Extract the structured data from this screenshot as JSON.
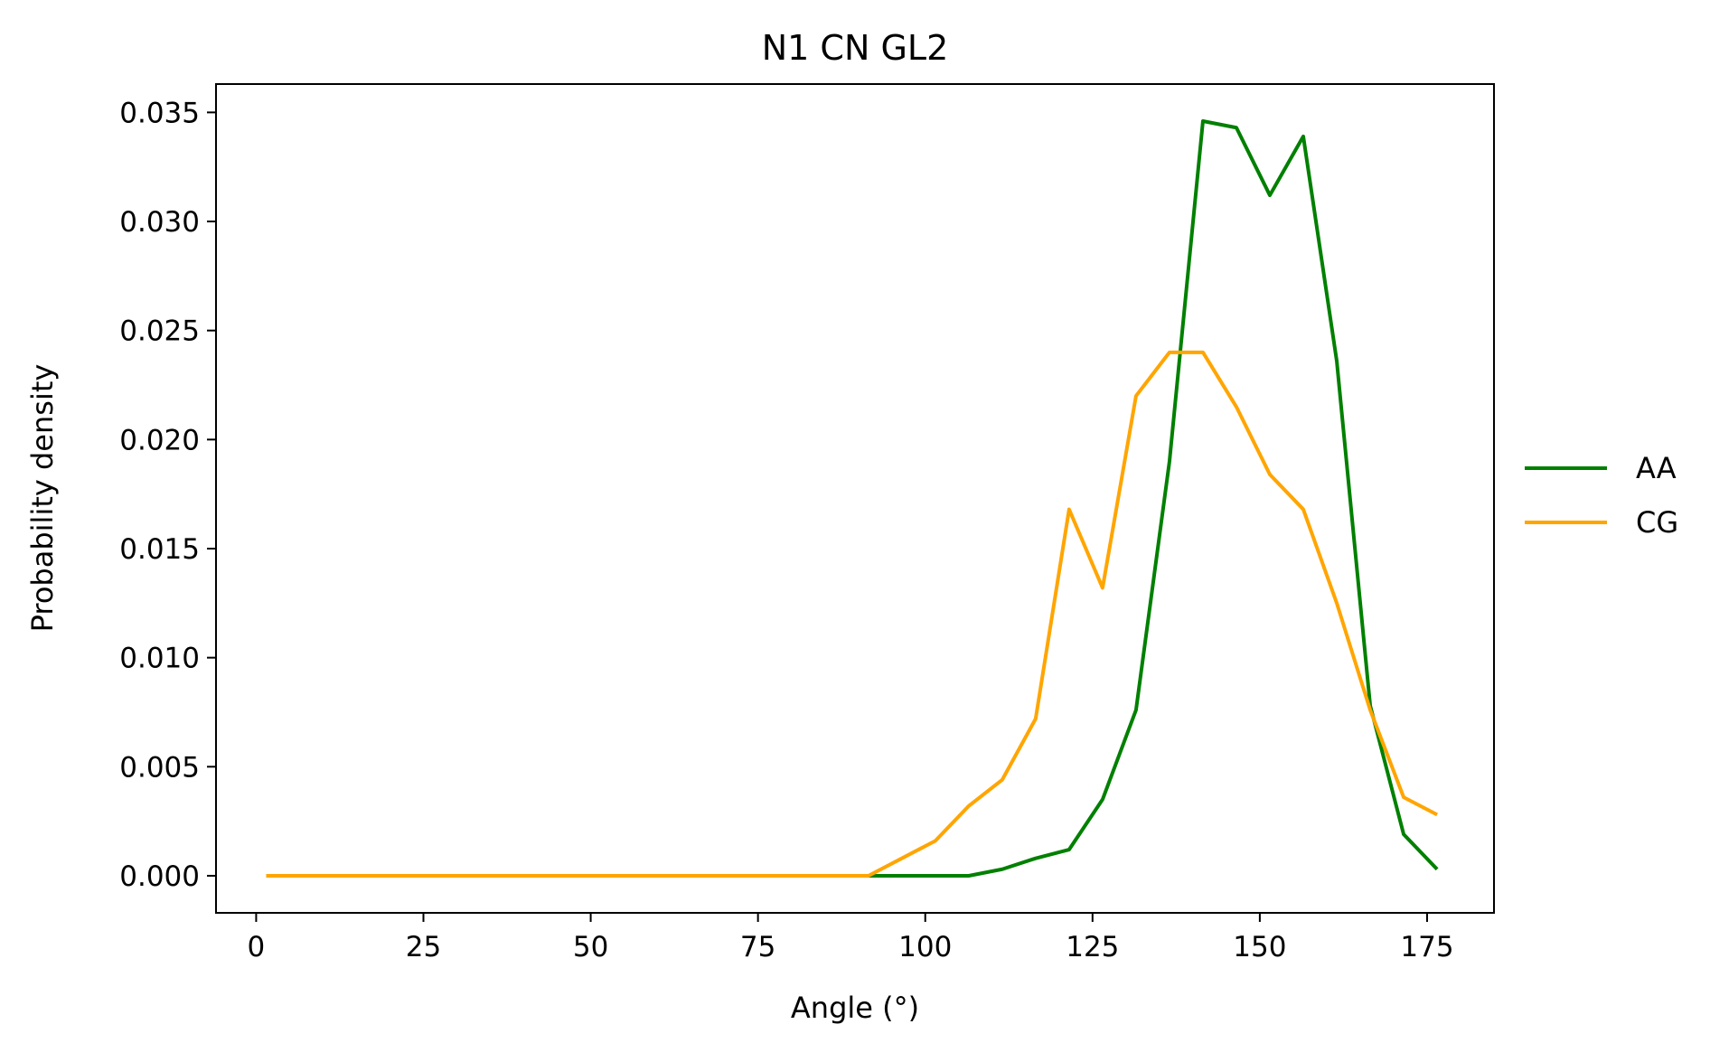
{
  "chart_data": {
    "type": "line",
    "title": "N1 CN GL2",
    "xlabel": "Angle (°)",
    "ylabel": "Probability density",
    "xlim": [
      -6,
      185
    ],
    "ylim": [
      -0.0017,
      0.0363
    ],
    "xticks": [
      0,
      25,
      50,
      75,
      100,
      125,
      150,
      175
    ],
    "xtick_labels": [
      "0",
      "25",
      "50",
      "75",
      "100",
      "125",
      "150",
      "175"
    ],
    "yticks": [
      0,
      0.005,
      0.01,
      0.015,
      0.02,
      0.025,
      0.03,
      0.035
    ],
    "ytick_labels": [
      "0.000",
      "0.005",
      "0.010",
      "0.015",
      "0.020",
      "0.025",
      "0.030",
      "0.035"
    ],
    "grid": false,
    "legend_position": "center-right-outside",
    "x": [
      1.5,
      6.5,
      11.5,
      16.5,
      21.5,
      26.5,
      31.5,
      36.5,
      41.5,
      46.5,
      51.5,
      56.5,
      61.5,
      66.5,
      71.5,
      76.5,
      81.5,
      86.5,
      91.5,
      96.5,
      101.5,
      106.5,
      111.5,
      116.5,
      121.5,
      126.5,
      131.5,
      136.5,
      141.5,
      146.5,
      151.5,
      156.5,
      161.5,
      166.5,
      171.5,
      176.5
    ],
    "series": [
      {
        "name": "AA",
        "color": "#008000",
        "values": [
          0,
          0,
          0,
          0,
          0,
          0,
          0,
          0,
          0,
          0,
          0,
          0,
          0,
          0,
          0,
          0,
          0,
          0,
          0,
          0,
          0,
          0,
          0.0003,
          0.0008,
          0.0012,
          0.0035,
          0.0076,
          0.019,
          0.0346,
          0.0343,
          0.0312,
          0.0339,
          0.0236,
          0.0078,
          0.0019,
          0.0003
        ]
      },
      {
        "name": "CG",
        "color": "#FFA500",
        "values": [
          0,
          0,
          0,
          0,
          0,
          0,
          0,
          0,
          0,
          0,
          0,
          0,
          0,
          0,
          0,
          0,
          0,
          0,
          0,
          0.0008,
          0.0016,
          0.0032,
          0.0044,
          0.0072,
          0.0168,
          0.0132,
          0.022,
          0.024,
          0.024,
          0.0215,
          0.0184,
          0.0168,
          0.0125,
          0.0076,
          0.0036,
          0.0028
        ]
      }
    ]
  }
}
